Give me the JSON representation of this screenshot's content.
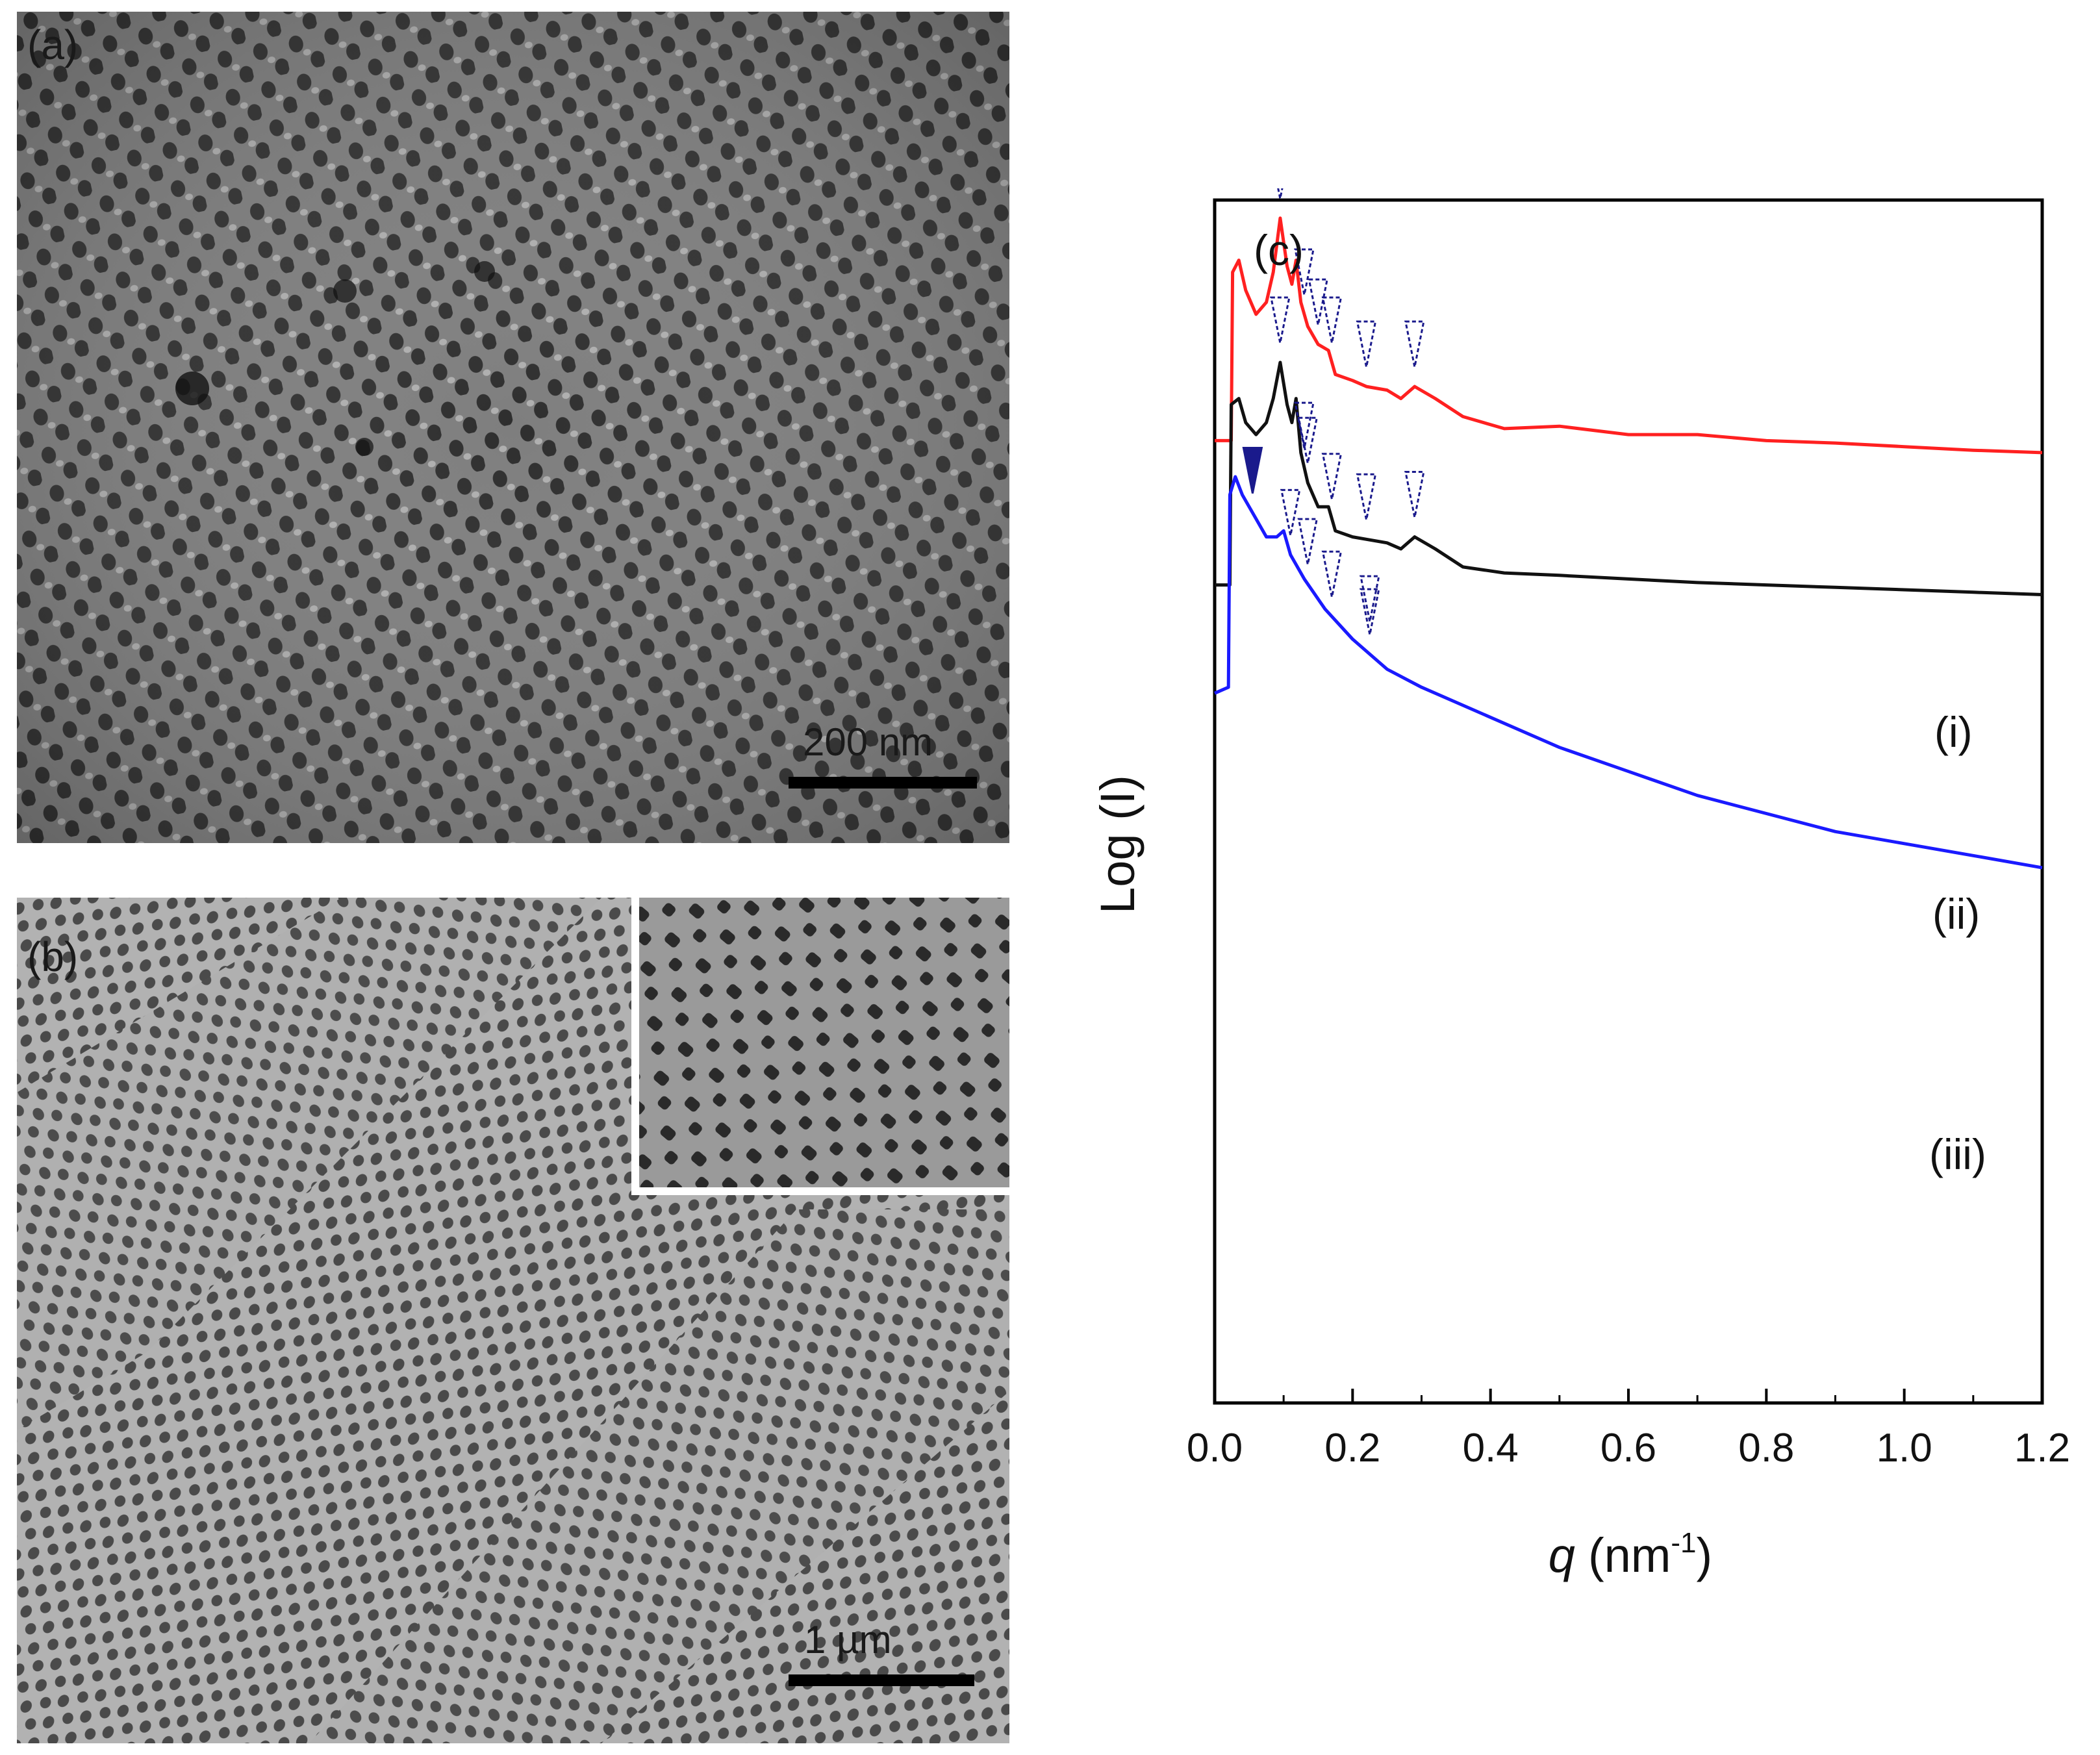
{
  "panels": {
    "a": {
      "label": "(a)",
      "scale": "200 nm",
      "image": "TEM micrograph of ordered pore lattice"
    },
    "b": {
      "label": "(b)",
      "scale": "1 µm",
      "image": "SEM micrograph of porous network with zoomed inset"
    },
    "c": {
      "label": "(c)"
    }
  },
  "colors": {
    "series_i": "#ff2020",
    "series_ii": "#111111",
    "series_iii": "#1a1aff",
    "marker": "#1a1a8c"
  },
  "chart_data": {
    "type": "line",
    "title": "(c)",
    "xlabel": "q (nm⁻¹)",
    "xlabel_italic": "q",
    "xlabel_unit": "(nm",
    "xlabel_exp": "-1",
    "xlabel_close": ")",
    "ylabel": "Log (I)",
    "xlim": [
      0.0,
      1.2
    ],
    "ylim": [
      0,
      10
    ],
    "xticks": [
      "0.0",
      "0.2",
      "0.4",
      "0.6",
      "0.8",
      "1.0",
      "1.2"
    ],
    "series": [
      {
        "name": "(i)",
        "color": "#ff2020",
        "x": [
          0.0,
          0.024,
          0.026,
          0.035,
          0.045,
          0.06,
          0.075,
          0.085,
          0.095,
          0.105,
          0.112,
          0.118,
          0.125,
          0.135,
          0.15,
          0.165,
          0.175,
          0.2,
          0.22,
          0.25,
          0.27,
          0.29,
          0.32,
          0.36,
          0.42,
          0.5,
          0.6,
          0.7,
          0.8,
          0.9,
          1.0,
          1.1,
          1.2
        ],
        "y": [
          8.0,
          8.0,
          9.4,
          9.5,
          9.25,
          9.05,
          9.15,
          9.4,
          9.85,
          9.45,
          9.3,
          9.5,
          9.15,
          8.95,
          8.8,
          8.75,
          8.55,
          8.5,
          8.45,
          8.42,
          8.35,
          8.45,
          8.35,
          8.2,
          8.1,
          8.12,
          8.05,
          8.05,
          8.0,
          7.98,
          7.95,
          7.92,
          7.9
        ]
      },
      {
        "name": "(ii)",
        "color": "#111111",
        "x": [
          0.0,
          0.022,
          0.024,
          0.035,
          0.045,
          0.06,
          0.075,
          0.085,
          0.095,
          0.105,
          0.112,
          0.118,
          0.125,
          0.135,
          0.15,
          0.165,
          0.175,
          0.2,
          0.22,
          0.25,
          0.27,
          0.29,
          0.32,
          0.36,
          0.42,
          0.5,
          0.6,
          0.7,
          0.8,
          0.9,
          1.0,
          1.1,
          1.2
        ],
        "y": [
          6.8,
          6.8,
          8.3,
          8.35,
          8.15,
          8.05,
          8.15,
          8.35,
          8.65,
          8.3,
          8.15,
          8.35,
          7.9,
          7.65,
          7.45,
          7.45,
          7.25,
          7.2,
          7.18,
          7.15,
          7.1,
          7.2,
          7.1,
          6.95,
          6.9,
          6.88,
          6.85,
          6.82,
          6.8,
          6.78,
          6.76,
          6.74,
          6.72
        ]
      },
      {
        "name": "(iii)",
        "color": "#1a1aff",
        "x": [
          0.0,
          0.02,
          0.022,
          0.03,
          0.04,
          0.05,
          0.06,
          0.075,
          0.09,
          0.1,
          0.11,
          0.13,
          0.16,
          0.2,
          0.25,
          0.3,
          0.4,
          0.5,
          0.6,
          0.7,
          0.8,
          0.9,
          1.0,
          1.1,
          1.2
        ],
        "y": [
          5.9,
          5.95,
          7.55,
          7.7,
          7.55,
          7.45,
          7.35,
          7.2,
          7.2,
          7.25,
          7.05,
          6.85,
          6.6,
          6.35,
          6.1,
          5.95,
          5.7,
          5.45,
          5.25,
          5.05,
          4.9,
          4.75,
          4.65,
          4.55,
          4.45
        ]
      }
    ],
    "peak_markers": [
      {
        "series": "(i)",
        "x": [
          0.095,
          0.13,
          0.15,
          0.17,
          0.22,
          0.29
        ]
      },
      {
        "series": "(ii)",
        "x": [
          0.095,
          0.13,
          0.135,
          0.17,
          0.22,
          0.29
        ]
      },
      {
        "series": "(iii)",
        "x": [
          0.055,
          0.11,
          0.135,
          0.17,
          0.225,
          0.225
        ]
      }
    ],
    "series_labels": [
      "(i)",
      "(ii)",
      "(iii)"
    ]
  }
}
